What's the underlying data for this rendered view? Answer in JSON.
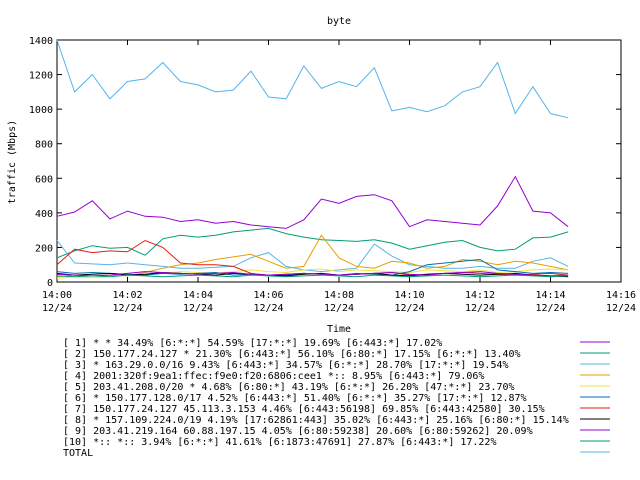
{
  "chart_data": {
    "type": "line",
    "title": "byte",
    "xlabel": "Time",
    "ylabel": "traffic (Mbps)",
    "ylim": [
      0,
      1400
    ],
    "y_ticks": [
      0,
      200,
      400,
      600,
      800,
      1000,
      1200,
      1400
    ],
    "xlim": [
      0,
      16
    ],
    "x_ticks": [
      {
        "t": 0,
        "time": "14:00",
        "date": "12/24"
      },
      {
        "t": 2,
        "time": "14:02",
        "date": "12/24"
      },
      {
        "t": 4,
        "time": "14:04",
        "date": "12/24"
      },
      {
        "t": 6,
        "time": "14:06",
        "date": "12/24"
      },
      {
        "t": 8,
        "time": "14:08",
        "date": "12/24"
      },
      {
        "t": 10,
        "time": "14:10",
        "date": "12/24"
      },
      {
        "t": 12,
        "time": "14:12",
        "date": "12/24"
      },
      {
        "t": 14,
        "time": "14:14",
        "date": "12/24"
      },
      {
        "t": 16,
        "time": "14:16",
        "date": "12/24"
      }
    ],
    "grid": false,
    "legend_position": "bottom",
    "x": [
      0,
      0.5,
      1,
      1.5,
      2,
      2.5,
      3,
      3.5,
      4,
      4.5,
      5,
      5.5,
      6,
      6.5,
      7,
      7.5,
      8,
      8.5,
      9,
      9.5,
      10,
      10.5,
      11,
      11.5,
      12,
      12.5,
      13,
      13.5,
      14,
      14.5
    ],
    "series": [
      {
        "name": "[ 1] * * 34.49%  [6:*:*] 54.59% [17:*:*] 19.69% [6:443:*] 17.02%",
        "color": "#9400d3",
        "values": [
          380,
          405,
          470,
          365,
          410,
          380,
          375,
          350,
          360,
          340,
          350,
          330,
          320,
          310,
          360,
          480,
          455,
          495,
          505,
          470,
          320,
          360,
          350,
          340,
          330,
          440,
          610,
          410,
          400,
          320
        ]
      },
      {
        "name": "[ 2] 150.177.24.127 * 21.30%  [6:443:*] 56.10% [6:80:*] 17.15% [6:*:*] 13.40%",
        "color": "#009e73",
        "values": [
          140,
          180,
          210,
          195,
          200,
          155,
          250,
          270,
          260,
          270,
          290,
          300,
          310,
          280,
          260,
          245,
          240,
          235,
          245,
          225,
          190,
          210,
          230,
          240,
          200,
          180,
          190,
          255,
          260,
          290
        ]
      },
      {
        "name": "[ 3] * 163.29.0.0/16 9.43%  [6:443:*] 34.57% [6:*:*] 28.70% [17:*:*] 19.54%",
        "color": "#56b4e9",
        "values": [
          240,
          110,
          105,
          100,
          110,
          100,
          90,
          80,
          80,
          85,
          90,
          140,
          170,
          90,
          70,
          60,
          70,
          80,
          220,
          150,
          100,
          90,
          80,
          80,
          90,
          80,
          80,
          120,
          140,
          90
        ]
      },
      {
        "name": "[ 4] 2001:320f:9ea1:ffec:f9e0:f20:6806:cee1 *:: 8.95%  [6:443:*] 79.06%",
        "color": "#e69f00",
        "values": [
          30,
          40,
          35,
          40,
          35,
          55,
          80,
          100,
          110,
          130,
          145,
          160,
          120,
          80,
          90,
          270,
          140,
          90,
          80,
          120,
          110,
          80,
          90,
          130,
          120,
          100,
          120,
          110,
          90,
          70
        ]
      },
      {
        "name": "[ 5] 203.41.208.0/20 * 4.68%  [6:80:*] 43.19% [6:*:*] 26.20% [47:*:*] 23.70%",
        "color": "#f0e442",
        "values": [
          20,
          30,
          25,
          30,
          40,
          45,
          50,
          60,
          55,
          50,
          60,
          70,
          60,
          55,
          70,
          75,
          60,
          70,
          65,
          60,
          55,
          70,
          65,
          60,
          70,
          55,
          60,
          70,
          75,
          70
        ]
      },
      {
        "name": "[ 6] * 150.177.128.0/17 4.52%  [6:443:*] 51.40% [6:*:*] 35.27% [17:*:*] 12.87%",
        "color": "#0072b2",
        "values": [
          60,
          50,
          55,
          50,
          45,
          40,
          50,
          45,
          50,
          55,
          40,
          45,
          35,
          40,
          50,
          45,
          40,
          50,
          45,
          40,
          60,
          100,
          110,
          120,
          130,
          70,
          60,
          50,
          55,
          50
        ]
      },
      {
        "name": "[ 7] 150.177.24.127 45.113.3.153 4.46%  [6:443:56198] 69.85% [6:443:42580] 30.15%",
        "color": "#e51e10",
        "values": [
          100,
          190,
          170,
          180,
          175,
          240,
          200,
          110,
          100,
          100,
          90,
          50,
          40,
          45,
          50,
          45,
          40,
          45,
          50,
          55,
          40,
          45,
          50,
          55,
          50,
          45,
          40,
          45,
          50,
          40
        ]
      },
      {
        "name": "[ 8] * 157.109.224.0/19 4.19%  [17:62861:443] 35.02% [6:443:*] 25.16% [6:80:*] 15.14%",
        "color": "#000000",
        "values": [
          50,
          40,
          45,
          50,
          40,
          45,
          55,
          50,
          45,
          40,
          50,
          45,
          40,
          35,
          45,
          50,
          40,
          45,
          50,
          40,
          35,
          45,
          50,
          45,
          40,
          45,
          50,
          40,
          35,
          30
        ]
      },
      {
        "name": "[ 9] 203.41.219.164 60.88.197.15 4.05%  [6:80:59238] 20.60% [6:80:59262] 20.09%",
        "color": "#9400d3",
        "values": [
          45,
          40,
          35,
          40,
          50,
          60,
          55,
          50,
          45,
          50,
          55,
          45,
          40,
          45,
          50,
          45,
          40,
          45,
          50,
          55,
          45,
          40,
          50,
          55,
          60,
          50,
          45,
          40,
          35,
          40
        ]
      },
      {
        "name": "[10] *:: *:: 3.94%  [6:*:*] 41.61% [6:1873:47691] 27.87% [6:443:*] 17.22%",
        "color": "#009e73",
        "values": [
          35,
          30,
          35,
          30,
          40,
          35,
          30,
          35,
          40,
          35,
          30,
          40,
          35,
          30,
          35,
          40,
          35,
          30,
          40,
          35,
          30,
          35,
          40,
          35,
          30,
          35,
          40,
          35,
          30,
          35
        ]
      },
      {
        "name": "TOTAL",
        "color": "#56b4e9",
        "values": [
          1400,
          1100,
          1200,
          1060,
          1160,
          1175,
          1270,
          1160,
          1140,
          1100,
          1110,
          1220,
          1070,
          1060,
          1250,
          1120,
          1160,
          1130,
          1240,
          990,
          1010,
          985,
          1020,
          1100,
          1130,
          1270,
          975,
          1130,
          975,
          950
        ]
      }
    ]
  }
}
